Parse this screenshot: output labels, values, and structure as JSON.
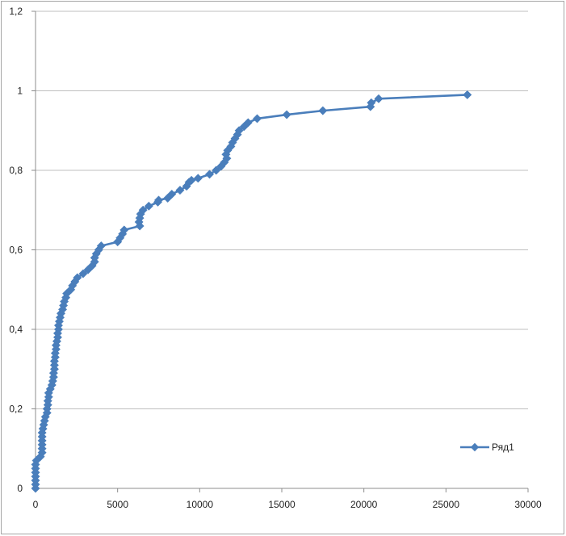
{
  "chart_data": {
    "type": "line",
    "title": "",
    "xlabel": "",
    "ylabel": "",
    "xlim": [
      0,
      30000
    ],
    "ylim": [
      0,
      1.2
    ],
    "x_ticks": [
      "0",
      "5000",
      "10000",
      "15000",
      "20000",
      "25000",
      "30000"
    ],
    "y_ticks": [
      "0",
      "0,2",
      "0,4",
      "0,6",
      "0,8",
      "1",
      "1,2"
    ],
    "grid": "horizontal",
    "legend_position": "right",
    "colors": {
      "series": "#4a7ebb",
      "grid": "#bfbfbf",
      "axis": "#8c8c8c"
    },
    "series": [
      {
        "name": "Ряд1",
        "marker": "diamond",
        "points": [
          [
            0,
            0
          ],
          [
            0,
            0.01
          ],
          [
            0,
            0.02
          ],
          [
            0,
            0.03
          ],
          [
            0,
            0.04
          ],
          [
            0,
            0.05
          ],
          [
            0,
            0.06
          ],
          [
            50,
            0.07
          ],
          [
            300,
            0.08
          ],
          [
            400,
            0.09
          ],
          [
            400,
            0.1
          ],
          [
            400,
            0.11
          ],
          [
            400,
            0.12
          ],
          [
            400,
            0.13
          ],
          [
            400,
            0.14
          ],
          [
            450,
            0.15
          ],
          [
            500,
            0.16
          ],
          [
            550,
            0.17
          ],
          [
            600,
            0.18
          ],
          [
            700,
            0.19
          ],
          [
            700,
            0.2
          ],
          [
            750,
            0.21
          ],
          [
            750,
            0.22
          ],
          [
            800,
            0.23
          ],
          [
            800,
            0.24
          ],
          [
            900,
            0.25
          ],
          [
            1000,
            0.26
          ],
          [
            1050,
            0.27
          ],
          [
            1100,
            0.28
          ],
          [
            1100,
            0.29
          ],
          [
            1150,
            0.3
          ],
          [
            1150,
            0.31
          ],
          [
            1150,
            0.32
          ],
          [
            1200,
            0.33
          ],
          [
            1200,
            0.34
          ],
          [
            1250,
            0.35
          ],
          [
            1250,
            0.36
          ],
          [
            1300,
            0.37
          ],
          [
            1350,
            0.38
          ],
          [
            1350,
            0.39
          ],
          [
            1400,
            0.4
          ],
          [
            1400,
            0.41
          ],
          [
            1450,
            0.42
          ],
          [
            1500,
            0.43
          ],
          [
            1550,
            0.44
          ],
          [
            1650,
            0.45
          ],
          [
            1700,
            0.46
          ],
          [
            1750,
            0.47
          ],
          [
            1850,
            0.48
          ],
          [
            1900,
            0.49
          ],
          [
            2150,
            0.5
          ],
          [
            2250,
            0.51
          ],
          [
            2400,
            0.52
          ],
          [
            2550,
            0.53
          ],
          [
            2900,
            0.54
          ],
          [
            3200,
            0.55
          ],
          [
            3450,
            0.56
          ],
          [
            3600,
            0.57
          ],
          [
            3600,
            0.58
          ],
          [
            3700,
            0.59
          ],
          [
            3850,
            0.6
          ],
          [
            4000,
            0.61
          ],
          [
            5000,
            0.62
          ],
          [
            5150,
            0.63
          ],
          [
            5300,
            0.64
          ],
          [
            5400,
            0.65
          ],
          [
            6350,
            0.66
          ],
          [
            6300,
            0.67
          ],
          [
            6350,
            0.68
          ],
          [
            6400,
            0.69
          ],
          [
            6550,
            0.7
          ],
          [
            6900,
            0.71
          ],
          [
            7450,
            0.72
          ],
          [
            7500,
            0.725
          ],
          [
            8050,
            0.73
          ],
          [
            8300,
            0.74
          ],
          [
            8800,
            0.75
          ],
          [
            9200,
            0.76
          ],
          [
            9350,
            0.77
          ],
          [
            9500,
            0.775
          ],
          [
            9900,
            0.78
          ],
          [
            10600,
            0.79
          ],
          [
            11000,
            0.8
          ],
          [
            11300,
            0.81
          ],
          [
            11500,
            0.82
          ],
          [
            11650,
            0.83
          ],
          [
            11600,
            0.84
          ],
          [
            11700,
            0.85
          ],
          [
            11900,
            0.86
          ],
          [
            12000,
            0.87
          ],
          [
            12150,
            0.88
          ],
          [
            12300,
            0.89
          ],
          [
            12400,
            0.9
          ],
          [
            12700,
            0.91
          ],
          [
            12950,
            0.92
          ],
          [
            13500,
            0.93
          ],
          [
            15300,
            0.94
          ],
          [
            17500,
            0.95
          ],
          [
            20400,
            0.96
          ],
          [
            20450,
            0.97
          ],
          [
            20900,
            0.98
          ],
          [
            26300,
            0.99
          ]
        ]
      }
    ]
  }
}
